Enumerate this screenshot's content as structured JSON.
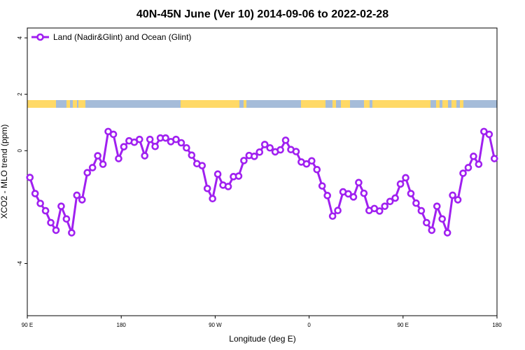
{
  "chart_data": {
    "type": "line",
    "title": "40N-45N June (Ver 10)   2014-09-06 to 2022-02-28",
    "xlabel": "Longitude (deg E)",
    "ylabel": "XCO2 - MLO trend (ppm)",
    "xlim": [
      90,
      540
    ],
    "ylim": [
      -5.85,
      4.35
    ],
    "x_ticks": [
      {
        "value": 90,
        "label": "90 E"
      },
      {
        "value": 180,
        "label": "180"
      },
      {
        "value": 270,
        "label": "90 W"
      },
      {
        "value": 360,
        "label": "0"
      },
      {
        "value": 450,
        "label": "90 E"
      },
      {
        "value": 540,
        "label": "180"
      }
    ],
    "y_ticks": [
      {
        "value": 4,
        "label": "4"
      },
      {
        "value": 2,
        "label": "2"
      },
      {
        "value": 0,
        "label": "0"
      },
      {
        "value": -4,
        "label": "-4"
      }
    ],
    "grid": false,
    "legend_position": "top-left",
    "colors": {
      "series": "#a020f0",
      "land": "#ffd966",
      "ocean": "#a5bcd9"
    },
    "series": [
      {
        "name": "Land (Nadir&Glint) and Ocean (Glint)",
        "x": [
          92.5,
          97.5,
          102.5,
          107.5,
          112.5,
          117.5,
          122.5,
          127.5,
          132.5,
          137.5,
          142.5,
          147.5,
          152.5,
          157.5,
          162.5,
          167.5,
          172.5,
          177.5,
          182.5,
          187.5,
          192.5,
          197.5,
          202.5,
          207.5,
          212.5,
          217.5,
          222.5,
          227.5,
          232.5,
          237.5,
          242.5,
          247.5,
          252.5,
          257.5,
          262.5,
          267.5,
          272.5,
          277.5,
          282.5,
          287.5,
          292.5,
          297.5,
          302.5,
          307.5,
          312.5,
          317.5,
          322.5,
          327.5,
          332.5,
          337.5,
          342.5,
          347.5,
          352.5,
          357.5,
          362.5,
          367.5,
          372.5,
          377.5,
          382.5,
          387.5,
          392.5,
          397.5,
          402.5,
          407.5,
          412.5,
          417.5,
          422.5,
          427.5,
          432.5,
          437.5,
          442.5,
          447.5,
          452.5,
          457.5,
          462.5,
          467.5,
          472.5,
          477.5,
          482.5,
          487.5,
          492.5,
          497.5,
          502.5,
          507.5,
          512.5,
          517.5,
          522.5,
          527.5,
          532.5,
          537.5
        ],
        "values": [
          -0.95,
          -1.52,
          -1.87,
          -2.13,
          -2.55,
          -2.82,
          -1.97,
          -2.42,
          -2.91,
          -1.58,
          -1.74,
          -0.78,
          -0.6,
          -0.18,
          -0.48,
          0.68,
          0.58,
          -0.28,
          0.14,
          0.35,
          0.3,
          0.4,
          -0.18,
          0.4,
          0.15,
          0.45,
          0.45,
          0.32,
          0.4,
          0.28,
          0.1,
          -0.16,
          -0.46,
          -0.53,
          -1.34,
          -1.7,
          -0.83,
          -1.22,
          -1.27,
          -0.92,
          -0.9,
          -0.35,
          -0.17,
          -0.2,
          -0.05,
          0.22,
          0.1,
          -0.04,
          0.03,
          0.37,
          0.04,
          -0.03,
          -0.4,
          -0.47,
          -0.36,
          -0.67,
          -1.25,
          -1.59,
          -2.32,
          -2.12,
          -1.46,
          -1.53,
          -1.64,
          -1.13,
          -1.51,
          -2.12,
          -2.05,
          -2.14,
          -1.97,
          -1.8,
          -1.68,
          -1.18,
          -0.96,
          -1.52,
          -1.86,
          -2.13,
          -2.55,
          -2.82,
          -1.97,
          -2.42,
          -2.91,
          -1.58,
          -1.74,
          -0.8,
          -0.6,
          -0.2,
          -0.48,
          0.68,
          0.58,
          -0.28
        ]
      }
    ]
  }
}
